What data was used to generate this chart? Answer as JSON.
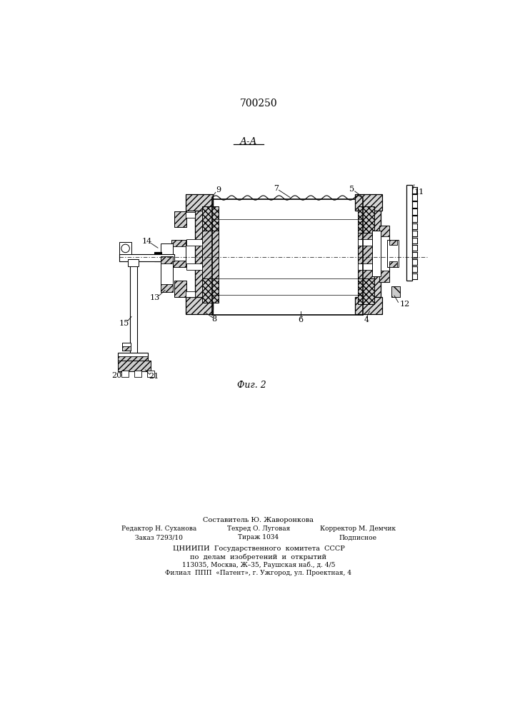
{
  "patent_number": "700250",
  "section_label": "А-А",
  "figure_label": "Фиг. 2",
  "background_color": "#ffffff",
  "line_color": "#000000",
  "footer_col1_line1": "Редактор Н. Суханова",
  "footer_col1_line2": "Заказ 7293/10",
  "footer_col2_line0": "Составитель Ю. Жаворонкова",
  "footer_col2_line1": "Техред О. Луговая",
  "footer_col2_line2": "Тираж 1034",
  "footer_col3_line1": "Корректор М. Демчик",
  "footer_col3_line2": "Подписное",
  "footer_org1": "ЦНИИПИ  Государственного  комитета  СССР",
  "footer_org2": "по  делам  изобретений  и  открытий",
  "footer_addr1": "113035, Москва, Ж–35, Раушская наб., д. 4/5",
  "footer_addr2": "Филиал  ППП  «Патент», г. Ужгород, ул. Проектная, 4"
}
